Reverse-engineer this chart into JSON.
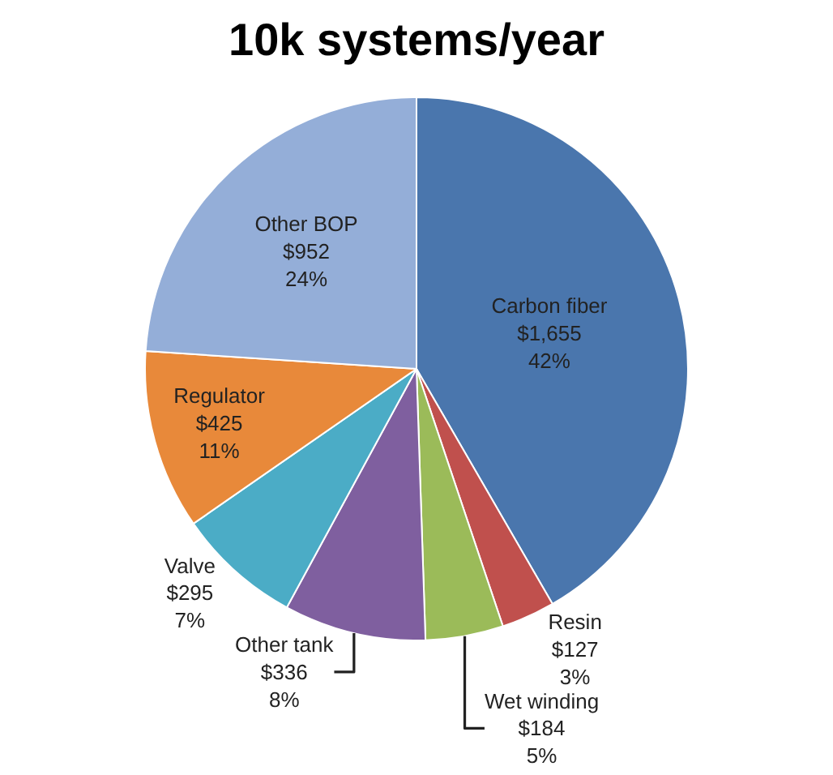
{
  "chart_data": {
    "type": "pie",
    "title": "10k systems/year",
    "categories": [
      "Carbon fiber",
      "Resin",
      "Wet winding",
      "Other tank",
      "Valve",
      "Regulator",
      "Other BOP"
    ],
    "values": [
      1655,
      127,
      184,
      336,
      295,
      425,
      952
    ],
    "colors": [
      "#4a76ad",
      "#c0504d",
      "#9bbb59",
      "#7f5f9f",
      "#4bacc6",
      "#e8893a",
      "#94aed8"
    ],
    "value_labels": [
      "$1,655\n42%",
      "$127\n3%",
      "$184\n5%",
      "$336\n8%",
      "$295\n7%",
      "$425\n11%",
      "$952\n24%"
    ],
    "legend": false
  }
}
